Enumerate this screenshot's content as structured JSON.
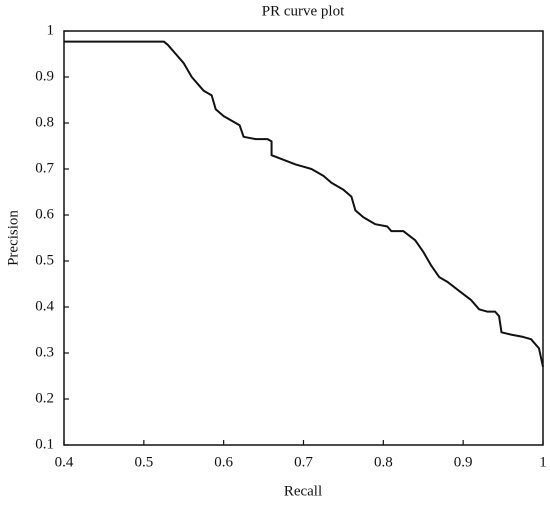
{
  "chart_data": {
    "type": "line",
    "title": "PR curve plot",
    "x_label": "Recall",
    "y_label": "Precision",
    "x": [
      0.4,
      0.525,
      0.53,
      0.54,
      0.55,
      0.56,
      0.575,
      0.585,
      0.59,
      0.6,
      0.615,
      0.62,
      0.625,
      0.64,
      0.655,
      0.66,
      0.66,
      0.675,
      0.69,
      0.7,
      0.71,
      0.725,
      0.735,
      0.75,
      0.76,
      0.765,
      0.775,
      0.79,
      0.805,
      0.81,
      0.825,
      0.84,
      0.85,
      0.86,
      0.87,
      0.88,
      0.895,
      0.91,
      0.92,
      0.93,
      0.94,
      0.945,
      0.948,
      0.96,
      0.975,
      0.985,
      0.995,
      1.0
    ],
    "values": [
      0.977,
      0.977,
      0.97,
      0.95,
      0.93,
      0.9,
      0.87,
      0.86,
      0.83,
      0.815,
      0.8,
      0.795,
      0.77,
      0.765,
      0.765,
      0.76,
      0.73,
      0.72,
      0.71,
      0.705,
      0.7,
      0.685,
      0.67,
      0.655,
      0.64,
      0.61,
      0.595,
      0.58,
      0.575,
      0.565,
      0.565,
      0.545,
      0.52,
      0.49,
      0.465,
      0.455,
      0.435,
      0.415,
      0.395,
      0.39,
      0.39,
      0.38,
      0.345,
      0.34,
      0.335,
      0.33,
      0.31,
      0.27
    ],
    "color": "#111111",
    "xlim": [
      0.4,
      1
    ],
    "xticks": [
      0.4,
      0.5,
      0.6,
      0.7,
      0.8,
      0.9,
      1
    ],
    "ylim": [
      0.1,
      1
    ],
    "yticks": [
      0.1,
      0.2,
      0.3,
      0.4,
      0.5,
      0.6,
      0.7,
      0.8,
      0.9,
      1
    ],
    "grid": false
  }
}
